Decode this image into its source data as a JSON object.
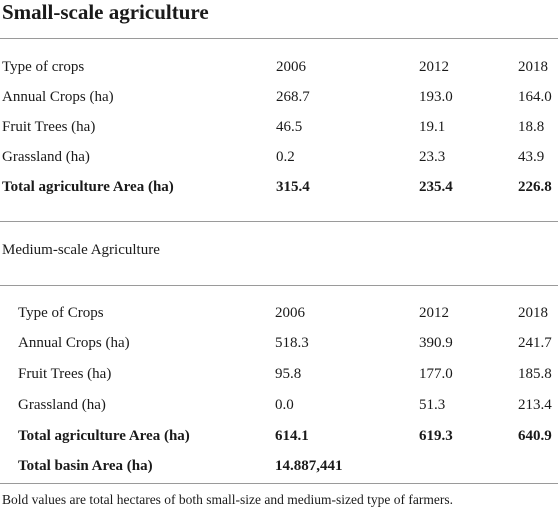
{
  "title": "Small-scale agriculture",
  "small_scale": {
    "headers": [
      "Type of crops",
      "2006",
      "2012",
      "2018"
    ],
    "rows": [
      [
        "Annual Crops (ha)",
        "268.7",
        "193.0",
        "164.0"
      ],
      [
        "Fruit Trees (ha)",
        "46.5",
        "19.1",
        "18.8"
      ],
      [
        "Grassland (ha)",
        "0.2",
        "23.3",
        "43.9"
      ]
    ],
    "total": [
      "Total agriculture Area (ha)",
      "315.4",
      "235.4",
      "226.8"
    ]
  },
  "medium_scale": {
    "section_title": "Medium-scale Agriculture",
    "headers": [
      "Type of Crops",
      "2006",
      "2012",
      "2018"
    ],
    "rows": [
      [
        "Annual Crops (ha)",
        "518.3",
        "390.9",
        "241.7"
      ],
      [
        "Fruit Trees (ha)",
        "95.8",
        "177.0",
        "185.8"
      ],
      [
        "Grassland (ha)",
        "0.0",
        "51.3",
        "213.4"
      ]
    ],
    "total": [
      "Total agriculture Area (ha)",
      "614.1",
      "619.3",
      "640.9"
    ],
    "basin": [
      "Total basin Area (ha)",
      "14.887,441"
    ]
  },
  "footnote": "Bold values are total hectares of both small-size and medium-sized type of farmers."
}
